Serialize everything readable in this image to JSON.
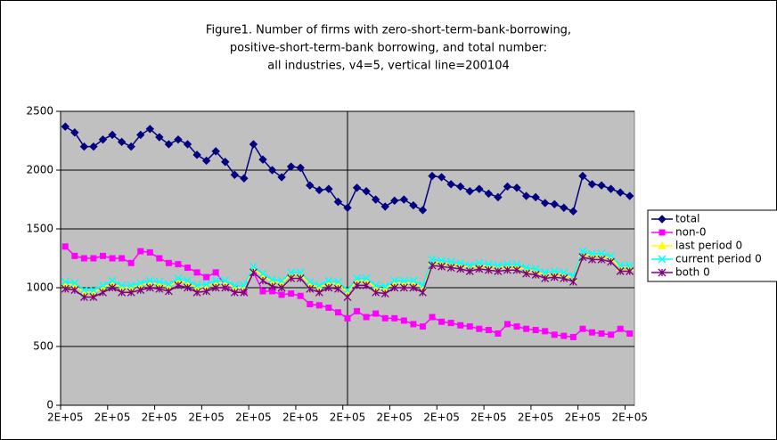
{
  "chart_data": {
    "type": "line",
    "title": [
      "Figure1. Number of firms with zero-short-term-bank-borrowing,",
      "positive-short-term-bank borrowing, and total number:",
      "all industries, v4=5, vertical line=200104"
    ],
    "categories": [
      "2E+05",
      null,
      null,
      null,
      null,
      "2E+05",
      null,
      null,
      null,
      null,
      "2E+05",
      null,
      null,
      null,
      null,
      "2E+05",
      null,
      null,
      null,
      null,
      "2E+05",
      null,
      null,
      null,
      null,
      "2E+05",
      null,
      null,
      null,
      null,
      "2E+05",
      null,
      null,
      null,
      null,
      "2E+05",
      null,
      null,
      null,
      null,
      "2E+05",
      null,
      null,
      null,
      null,
      "2E+05",
      null,
      null,
      null,
      null,
      "2E+05",
      null,
      null,
      null,
      null,
      "2E+05",
      null,
      null,
      null,
      null,
      "2E+05"
    ],
    "ylim": [
      0,
      2500
    ],
    "yticks": [
      0,
      500,
      1000,
      1500,
      2000,
      2500
    ],
    "grid": true,
    "legend": "right",
    "series": [
      {
        "name": "total",
        "color": "#000080",
        "marker": "diamond",
        "values": [
          2370,
          2320,
          2200,
          2200,
          2260,
          2300,
          2240,
          2200,
          2300,
          2350,
          2280,
          2220,
          2260,
          2220,
          2130,
          2080,
          2160,
          2070,
          1960,
          1930,
          2220,
          2090,
          2000,
          1940,
          2030,
          2020,
          1870,
          1830,
          1840,
          1730,
          1680,
          1850,
          1820,
          1750,
          1690,
          1740,
          1750,
          1700,
          1660,
          1950,
          1940,
          1880,
          1860,
          1820,
          1840,
          1800,
          1770,
          1860,
          1850,
          1780,
          1770,
          1720,
          1710,
          1680,
          1650,
          1950,
          1880,
          1870,
          1840,
          1810,
          1780
        ]
      },
      {
        "name": "non-0",
        "color": "#FF00FF",
        "marker": "square",
        "values": [
          1350,
          1270,
          1250,
          1250,
          1270,
          1250,
          1250,
          1210,
          1310,
          1300,
          1250,
          1210,
          1200,
          1170,
          1130,
          1090,
          1130,
          1020,
          990,
          970,
          1130,
          970,
          970,
          940,
          950,
          930,
          860,
          850,
          830,
          790,
          740,
          800,
          750,
          780,
          740,
          740,
          720,
          690,
          670,
          750,
          710,
          700,
          680,
          670,
          650,
          640,
          610,
          690,
          670,
          650,
          640,
          630,
          600,
          590,
          580,
          650,
          620,
          610,
          600,
          650,
          610
        ]
      },
      {
        "name": "last period 0",
        "color": "#FFFF00",
        "marker": "triangle",
        "values": [
          1030,
          1020,
          960,
          960,
          1000,
          1040,
          1000,
          1000,
          1020,
          1040,
          1030,
          1010,
          1060,
          1040,
          1000,
          1010,
          1040,
          1040,
          1000,
          1000,
          1160,
          1100,
          1050,
          1040,
          1110,
          1110,
          1030,
          1000,
          1040,
          1030,
          960,
          1060,
          1060,
          1000,
          990,
          1040,
          1040,
          1040,
          1000,
          1220,
          1210,
          1200,
          1190,
          1170,
          1190,
          1180,
          1170,
          1180,
          1180,
          1150,
          1140,
          1110,
          1120,
          1110,
          1080,
          1290,
          1270,
          1270,
          1250,
          1170,
          1170
        ]
      },
      {
        "name": "current period 0",
        "color": "#00FFFF",
        "marker": "x",
        "values": [
          1050,
          1040,
          980,
          980,
          1020,
          1060,
          1020,
          1020,
          1040,
          1060,
          1050,
          1030,
          1080,
          1060,
          1020,
          1030,
          1060,
          1060,
          1020,
          1020,
          1180,
          1120,
          1070,
          1060,
          1130,
          1130,
          1050,
          1020,
          1060,
          1050,
          980,
          1080,
          1080,
          1020,
          1010,
          1060,
          1060,
          1060,
          1020,
          1240,
          1230,
          1220,
          1210,
          1190,
          1210,
          1200,
          1190,
          1200,
          1200,
          1170,
          1160,
          1130,
          1140,
          1130,
          1100,
          1310,
          1290,
          1290,
          1270,
          1190,
          1190
        ]
      },
      {
        "name": "both 0",
        "color": "#800080",
        "marker": "star",
        "values": [
          990,
          980,
          920,
          920,
          960,
          1000,
          960,
          960,
          980,
          1000,
          990,
          970,
          1020,
          1000,
          960,
          970,
          1000,
          1000,
          960,
          960,
          1130,
          1060,
          1010,
          1000,
          1080,
          1080,
          990,
          960,
          1000,
          990,
          920,
          1020,
          1020,
          960,
          950,
          1000,
          1000,
          1000,
          960,
          1190,
          1180,
          1170,
          1160,
          1140,
          1160,
          1150,
          1140,
          1150,
          1150,
          1120,
          1110,
          1080,
          1090,
          1080,
          1050,
          1260,
          1240,
          1240,
          1220,
          1140,
          1140
        ]
      }
    ]
  }
}
